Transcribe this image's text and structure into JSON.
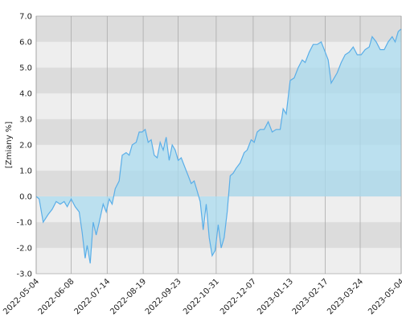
{
  "chart_data": {
    "type": "area",
    "y_label": "[Zmiany %]",
    "color": "#5aaee8",
    "fill": "#a9dbef",
    "ylim": [
      -3,
      7
    ],
    "yticks": [
      {
        "value": -3,
        "label": "-3.0"
      },
      {
        "value": -2,
        "label": "-2.0"
      },
      {
        "value": -1,
        "label": "-1.0"
      },
      {
        "value": 0,
        "label": "0.0"
      },
      {
        "value": 1,
        "label": "1.0"
      },
      {
        "value": 2,
        "label": "2.0"
      },
      {
        "value": 3,
        "label": "3.0"
      },
      {
        "value": 4,
        "label": "4.0"
      },
      {
        "value": 5,
        "label": "5.0"
      },
      {
        "value": 6,
        "label": "6.0"
      },
      {
        "value": 7,
        "label": "7.0"
      }
    ],
    "xlim": [
      "2022-05-04",
      "2023-05-04"
    ],
    "xticks": [
      "2022-05-04",
      "2022-06-08",
      "2022-07-14",
      "2022-08-19",
      "2022-09-23",
      "2022-10-31",
      "2022-12-07",
      "2023-01-13",
      "2023-02-17",
      "2023-03-24",
      "2023-05-04"
    ],
    "x": [
      "2022-05-04",
      "2022-05-07",
      "2022-05-11",
      "2022-05-16",
      "2022-05-20",
      "2022-05-24",
      "2022-05-28",
      "2022-06-01",
      "2022-06-04",
      "2022-06-08",
      "2022-06-12",
      "2022-06-16",
      "2022-06-19",
      "2022-06-22",
      "2022-06-24",
      "2022-06-27",
      "2022-06-30",
      "2022-07-03",
      "2022-07-06",
      "2022-07-10",
      "2022-07-13",
      "2022-07-16",
      "2022-07-19",
      "2022-07-22",
      "2022-07-26",
      "2022-07-29",
      "2022-08-02",
      "2022-08-05",
      "2022-08-08",
      "2022-08-12",
      "2022-08-15",
      "2022-08-18",
      "2022-08-21",
      "2022-08-24",
      "2022-08-27",
      "2022-08-30",
      "2022-09-02",
      "2022-09-05",
      "2022-09-08",
      "2022-09-11",
      "2022-09-14",
      "2022-09-17",
      "2022-09-20",
      "2022-09-23",
      "2022-09-26",
      "2022-09-29",
      "2022-10-03",
      "2022-10-06",
      "2022-10-09",
      "2022-10-12",
      "2022-10-15",
      "2022-10-18",
      "2022-10-21",
      "2022-10-24",
      "2022-10-27",
      "2022-10-30",
      "2022-11-02",
      "2022-11-05",
      "2022-11-08",
      "2022-11-11",
      "2022-11-14",
      "2022-11-17",
      "2022-11-20",
      "2022-11-24",
      "2022-11-28",
      "2022-12-01",
      "2022-12-05",
      "2022-12-08",
      "2022-12-11",
      "2022-12-14",
      "2022-12-18",
      "2022-12-22",
      "2022-12-26",
      "2022-12-30",
      "2023-01-03",
      "2023-01-06",
      "2023-01-09",
      "2023-01-13",
      "2023-01-17",
      "2023-01-21",
      "2023-01-25",
      "2023-01-28",
      "2023-02-01",
      "2023-02-05",
      "2023-02-09",
      "2023-02-13",
      "2023-02-17",
      "2023-02-20",
      "2023-02-23",
      "2023-02-26",
      "2023-03-01",
      "2023-03-05",
      "2023-03-09",
      "2023-03-13",
      "2023-03-17",
      "2023-03-21",
      "2023-03-25",
      "2023-03-29",
      "2023-04-02",
      "2023-04-05",
      "2023-04-09",
      "2023-04-13",
      "2023-04-17",
      "2023-04-21",
      "2023-04-25",
      "2023-04-28",
      "2023-05-01",
      "2023-05-04"
    ],
    "values": [
      0.0,
      -0.1,
      -1.0,
      -0.7,
      -0.5,
      -0.2,
      -0.3,
      -0.2,
      -0.4,
      -0.1,
      -0.4,
      -0.6,
      -1.4,
      -2.4,
      -1.9,
      -2.6,
      -1.0,
      -1.5,
      -1.0,
      -0.3,
      -0.6,
      -0.1,
      -0.3,
      0.3,
      0.6,
      1.6,
      1.7,
      1.6,
      2.0,
      2.1,
      2.5,
      2.5,
      2.6,
      2.1,
      2.2,
      1.6,
      1.5,
      2.1,
      1.8,
      2.3,
      1.4,
      2.0,
      1.8,
      1.4,
      1.5,
      1.2,
      0.8,
      0.5,
      0.6,
      0.2,
      -0.2,
      -1.3,
      -0.3,
      -1.6,
      -2.3,
      -2.1,
      -1.1,
      -2.0,
      -1.6,
      -0.6,
      0.8,
      0.9,
      1.1,
      1.3,
      1.7,
      1.8,
      2.2,
      2.1,
      2.5,
      2.6,
      2.6,
      2.9,
      2.5,
      2.6,
      2.6,
      3.4,
      3.2,
      4.5,
      4.6,
      5.0,
      5.3,
      5.2,
      5.6,
      5.9,
      5.9,
      6.0,
      5.6,
      5.3,
      4.4,
      4.6,
      4.8,
      5.2,
      5.5,
      5.6,
      5.8,
      5.5,
      5.5,
      5.7,
      5.8,
      6.2,
      6.0,
      5.7,
      5.7,
      6.0,
      6.2,
      6.0,
      6.4,
      6.5
    ]
  }
}
